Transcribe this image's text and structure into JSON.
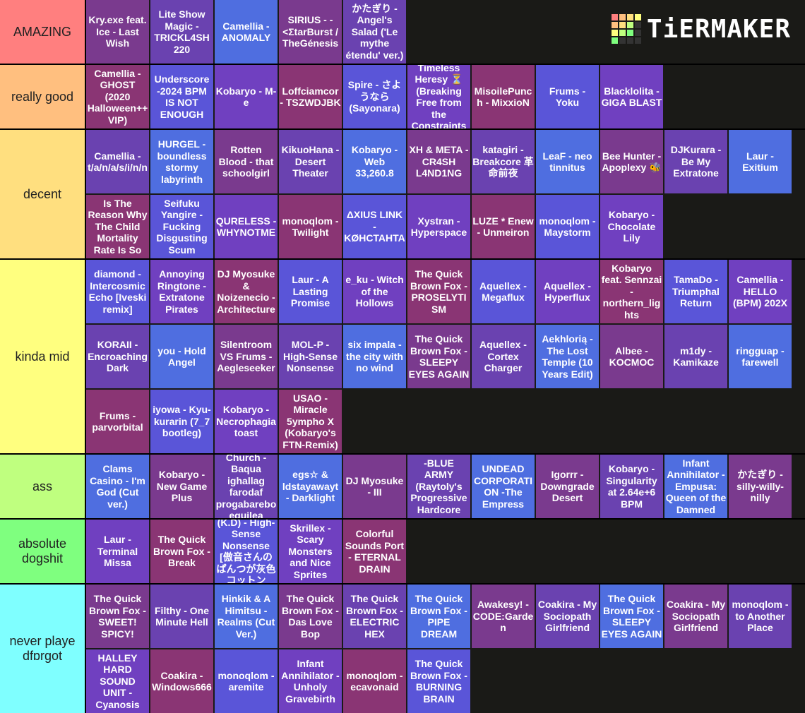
{
  "logo": "TiERMAKER",
  "tiers": [
    {
      "label": "AMAZING",
      "color": "#ff7f7f",
      "items": [
        "Kry.exe feat. Ice - Last Wish",
        "Lite Show Magic - TRICKL4SH 220",
        "Camellia - ANOMALY",
        "SIRIUS - - <ΣtarBurst / TheGénesis",
        "かたぎり - Angel's Salad ('Le mythe étendu' ver.)"
      ]
    },
    {
      "label": "really good",
      "color": "#ffbf7f",
      "items": [
        "Camellia - GHOST (2020 Halloween++ VIP)",
        "Underscore -2024 BPM IS NOT ENOUGH",
        "Kobaryo - M-e",
        "Loffciamcor - TSZWDJBK",
        "Spire - さよ うなら (Sayonara)",
        "Timeless Heresy ⏳ (Breaking Free from the Constraints",
        "MisoilePunch - MixxioN",
        "Frums - Yoku",
        "Blacklolita -GIGA BLAST"
      ]
    },
    {
      "label": "decent",
      "color": "#ffdf7f",
      "items": [
        "Camellia - t/a/n/a/s/i/n/n",
        "HURGEL - boundless stormy labyrinth",
        "Rotten Blood - that schoolgirl",
        "KikuoHana -Desert Theater",
        "Kobaryo - Web 33,260.8",
        "XH & META -CR4SH L4ND1NG",
        "katagiri - Breakcore 革命前夜",
        "LeaF - neo tinnitus",
        "Bee Hunter - Apoplexy 🐝",
        "DJKurara - Be My Extratone",
        "Laur - Exitium",
        "Is The Reason Why The Child Mortality Rate Is So",
        "Seifuku Yangire - Fucking Disgusting Scum",
        "QURELESS - WHYNOTME",
        "monoqlom -Twilight",
        "ΔXIUS LINK - KØHCTAHTA",
        "Xystran - Hyperspace",
        "LUZE * Enew - Unmeiron",
        "monoqlom -Maystorm",
        "Kobaryo - Chocolate Lily"
      ]
    },
    {
      "label": "kinda mid",
      "color": "#ffff7f",
      "items": [
        "diamond - Intercosmic Echo [Iveski remix]",
        "Annoying Ringtone - Extratone Pirates",
        "DJ Myosuke & Noizenecio - Architecture",
        "Laur - A Lasting Promise",
        "e_ku - Witch of the Hollows",
        "The Quick Brown Fox - PROSELYTISM",
        "Aquellex - Megaflux",
        "Aquellex - Hyperflux",
        "Kobaryo feat. Sennzai - northern_lights",
        "TamaDo - Triumphal Return",
        "Camellia - HELLO (BPM) 202X",
        "KORAII - Encroaching Dark",
        "you - Hold Angel",
        "Silentroom VS Frums - Aegleseeker",
        "MOL-P - High-Sense Nonsense",
        "six impala - the city with no wind",
        "The Quick Brown Fox -SLEEPY EYES AGAIN",
        "Aquellex - Cortex Charger",
        "Aekhlorią - The Lost Temple (10 Years Edit)",
        "Albee - KOCMOC",
        "m1dy - Kamikaze",
        "ringguap - farewell",
        "Frums - parvorbital",
        "iyowa - Kyu-kurarin (7_7 bootleg)",
        "Kobaryo - Necrophagia toast",
        "USAO - Miracle 5ympho X (Kobaryo's FTN-Remix)"
      ]
    },
    {
      "label": "ass",
      "color": "#bfff7f",
      "items": [
        "Clams Casino - I'm God (Cut ver.)",
        "Kobaryo - New Game Plus",
        "Church - Baqua ighallag farodaf progabarebo equilea",
        "egs☆ & ldstayawayt - Darklight",
        "DJ Myosuke - III",
        "-BLUE ARMY (Raytoly's Progressive Hardcore",
        "UNDEAD CORPORATION -The Empress",
        "Igorrr - Downgrade Desert",
        "Kobaryo - Singularity at 2.64e+6 BPM",
        "Infant Annihilator -Empusa: Queen of the Damned",
        "かたぎり - silly-willy-nilly"
      ]
    },
    {
      "label": "absolute dogshit",
      "color": "#7fff7f",
      "items": [
        "Laur - Terminal Missa",
        "The Quick Brown Fox -Break",
        "(K.D) - High-Sense Nonsense [傲音さんのぱんつが灰色コットン",
        "Skrillex - Scary Monsters and Nice Sprites",
        "Colorful Sounds Port - ETERNAL DRAIN"
      ]
    },
    {
      "label": "never playe dfɒrgot",
      "color": "#7fffff",
      "items": [
        "The Quick Brown Fox -SWEET! SPICY!",
        "Filthy - One Minute Hell",
        "Hinkik & A Himitsu - Realms (Cut Ver.)",
        "The Quick Brown Fox -Das Love Bop",
        "The Quick Brown Fox - ELECTRIC HEX",
        "The Quick Brown Fox -PIPE DREAM",
        "Awakesy! - CODE:Garden",
        "Coakira - My Sociopath Girlfriend",
        "The Quick Brown Fox -SLEEPY EYES AGAIN",
        "Coakira - My Sociopath Girlfriend",
        "monoqlom -to Another Place",
        "HALLEY HARD SOUND UNIT - Cyanosis",
        "Coakira - Windows666",
        "monoqlom -aremite",
        "Infant Annihilator -Unholy Gravebirth",
        "monoqlom -ecavonaid",
        "The Quick Brown Fox -BURNING BRAIN"
      ]
    }
  ]
}
